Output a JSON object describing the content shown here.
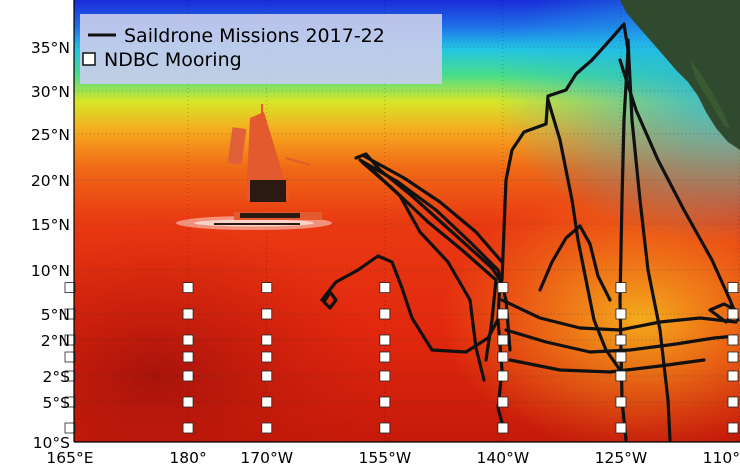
{
  "legend": {
    "track_label": "Saildrone Missions 2017-22",
    "mooring_label": "NDBC Mooring"
  },
  "axes": {
    "lat_ticks": [
      {
        "label": "35°N",
        "lat": 35
      },
      {
        "label": "30°N",
        "lat": 30
      },
      {
        "label": "25°N",
        "lat": 25
      },
      {
        "label": "20°N",
        "lat": 20
      },
      {
        "label": "15°N",
        "lat": 15
      },
      {
        "label": "10°N",
        "lat": 10
      },
      {
        "label": "5°N",
        "lat": 5
      },
      {
        "label": "2°N",
        "lat": 2
      },
      {
        "label": "2°S",
        "lat": -2
      },
      {
        "label": "5°S",
        "lat": -5
      },
      {
        "label": "10°S",
        "lat": -10
      }
    ],
    "lon_ticks": [
      {
        "label": "165°E",
        "lon": 165
      },
      {
        "label": "180°",
        "lon": 180
      },
      {
        "label": "170°W",
        "lon": 190
      },
      {
        "label": "155°W",
        "lon": 205
      },
      {
        "label": "140°W",
        "lon": 220
      },
      {
        "label": "125°W",
        "lon": 235
      },
      {
        "label": "110°",
        "lon": 250
      }
    ],
    "lon_range": [
      165,
      250
    ],
    "lat_range": [
      -10,
      38
    ]
  },
  "moorings": {
    "longitudes": [
      165,
      180,
      190,
      205,
      220,
      235,
      250
    ],
    "latitudes": [
      8,
      5,
      2,
      0,
      -2,
      -5,
      -8
    ]
  },
  "colors": {
    "track": "#111111",
    "mooring_fill": "#ffffff",
    "land": "#2f4a2f",
    "legend_bg": "#c8ccec"
  }
}
